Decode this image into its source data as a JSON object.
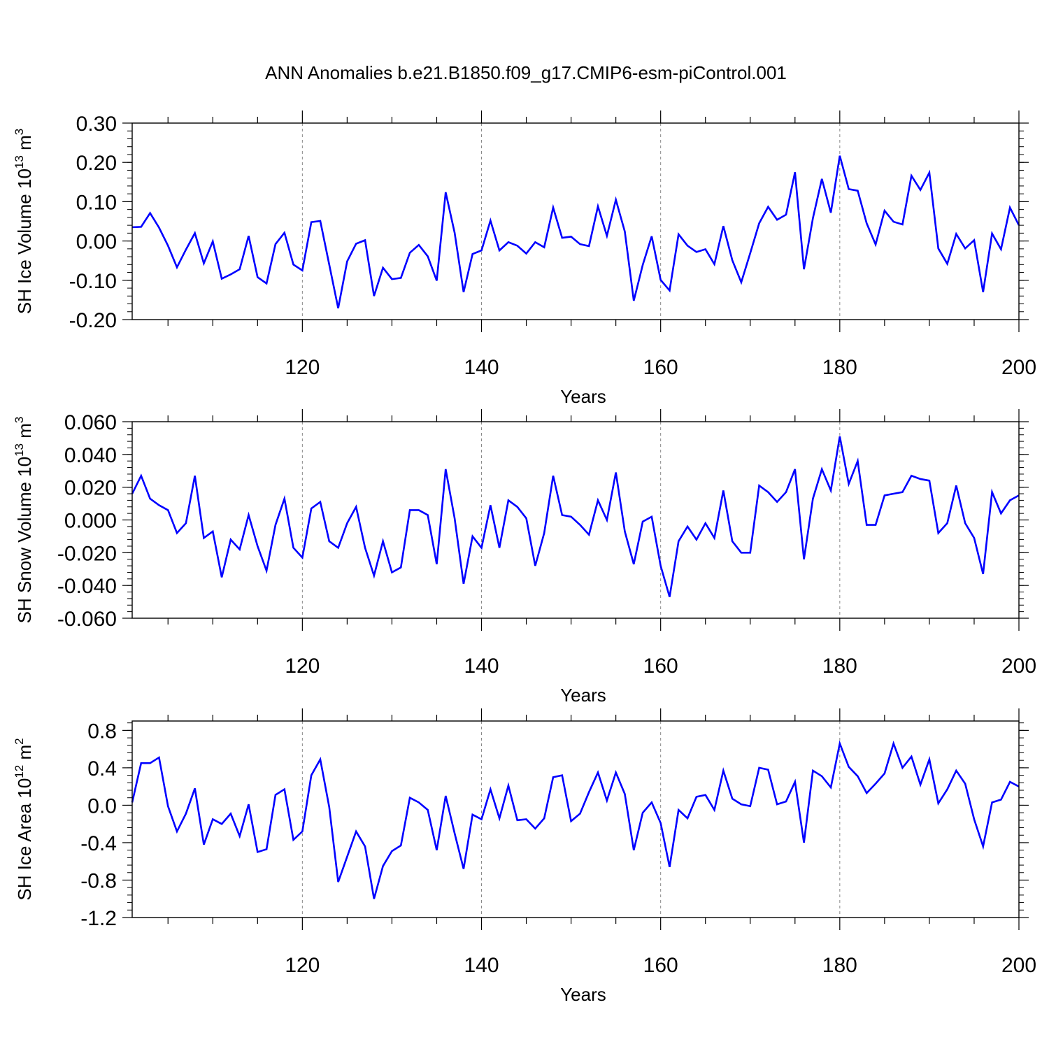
{
  "title": "ANN Anomalies b.e21.B1850.f09_g17.CMIP6-esm-piControl.001",
  "colors": {
    "line": "#0000ff",
    "axis": "#000000",
    "grid": "#888888"
  },
  "chart_data": [
    {
      "type": "line",
      "ylabel": "SH Ice Volume 10",
      "ylabel_exp": "13",
      "ylabel_unit": " m",
      "ylabel_unit_exp": "3",
      "xlabel": "Years",
      "xlim": [
        101,
        200
      ],
      "xticks": [
        120,
        140,
        160,
        180,
        200
      ],
      "x_tick_labels": [
        "120",
        "140",
        "160",
        "180",
        "200"
      ],
      "ylim": [
        -0.2,
        0.3
      ],
      "yticks": [
        0.3,
        0.2,
        0.1,
        0.0,
        -0.1,
        -0.2
      ],
      "y_tick_labels": [
        "0.30",
        "0.20",
        "0.10",
        "0.00",
        "-0.10",
        "-0.20"
      ],
      "grid_x": [
        120,
        140,
        160,
        180
      ],
      "series": [
        {
          "name": "SH Ice Volume",
          "x_start": 101,
          "values": [
            0.035,
            0.036,
            0.071,
            0.034,
            -0.012,
            -0.067,
            -0.022,
            0.02,
            -0.057,
            -0.001,
            -0.096,
            -0.085,
            -0.072,
            0.013,
            -0.092,
            -0.108,
            -0.008,
            0.021,
            -0.06,
            -0.075,
            0.048,
            0.051,
            -0.06,
            -0.171,
            -0.052,
            -0.007,
            0.002,
            -0.14,
            -0.068,
            -0.097,
            -0.094,
            -0.03,
            -0.01,
            -0.039,
            -0.101,
            0.124,
            0.021,
            -0.13,
            -0.033,
            -0.024,
            0.052,
            -0.024,
            -0.003,
            -0.012,
            -0.032,
            -0.003,
            -0.016,
            0.085,
            0.008,
            0.011,
            -0.008,
            -0.013,
            0.088,
            0.013,
            0.105,
            0.024,
            -0.152,
            -0.061,
            0.012,
            -0.099,
            -0.126,
            0.017,
            -0.012,
            -0.028,
            -0.021,
            -0.059,
            0.038,
            -0.049,
            -0.105,
            -0.031,
            0.045,
            0.087,
            0.054,
            0.067,
            0.175,
            -0.072,
            0.058,
            0.158,
            0.072,
            0.217,
            0.132,
            0.128,
            0.045,
            -0.009,
            0.077,
            0.049,
            0.042,
            0.166,
            0.13,
            0.174,
            -0.019,
            -0.058,
            0.018,
            -0.019,
            0.002,
            -0.13,
            0.019,
            -0.021,
            0.085,
            0.04
          ]
        }
      ]
    },
    {
      "type": "line",
      "ylabel": "SH Snow Volume 10",
      "ylabel_exp": "13",
      "ylabel_unit": " m",
      "ylabel_unit_exp": "3",
      "xlabel": "Years",
      "xlim": [
        101,
        200
      ],
      "xticks": [
        120,
        140,
        160,
        180,
        200
      ],
      "x_tick_labels": [
        "120",
        "140",
        "160",
        "180",
        "200"
      ],
      "ylim": [
        -0.06,
        0.06
      ],
      "yticks": [
        0.06,
        0.04,
        0.02,
        0.0,
        -0.02,
        -0.04,
        -0.06
      ],
      "y_tick_labels": [
        "0.060",
        "0.040",
        "0.020",
        "0.000",
        "-0.020",
        "-0.040",
        "-0.060"
      ],
      "grid_x": [
        120,
        140,
        160,
        180
      ],
      "series": [
        {
          "name": "SH Snow Volume",
          "x_start": 101,
          "values": [
            0.016,
            0.027,
            0.013,
            0.009,
            0.006,
            -0.008,
            -0.002,
            0.027,
            -0.011,
            -0.007,
            -0.035,
            -0.012,
            -0.018,
            0.003,
            -0.016,
            -0.031,
            -0.003,
            0.013,
            -0.017,
            -0.023,
            0.007,
            0.011,
            -0.013,
            -0.017,
            -0.002,
            0.008,
            -0.017,
            -0.034,
            -0.013,
            -0.032,
            -0.029,
            0.006,
            0.006,
            0.003,
            -0.027,
            0.031,
            0.001,
            -0.039,
            -0.01,
            -0.017,
            0.009,
            -0.017,
            0.012,
            0.008,
            0.001,
            -0.028,
            -0.008,
            0.027,
            0.003,
            0.002,
            -0.003,
            -0.009,
            0.012,
            0.0,
            0.029,
            -0.007,
            -0.027,
            -0.001,
            0.002,
            -0.028,
            -0.047,
            -0.013,
            -0.004,
            -0.012,
            -0.002,
            -0.011,
            0.018,
            -0.013,
            -0.02,
            -0.02,
            0.021,
            0.017,
            0.011,
            0.017,
            0.031,
            -0.024,
            0.013,
            0.031,
            0.018,
            0.051,
            0.022,
            0.036,
            -0.003,
            -0.003,
            0.015,
            0.016,
            0.017,
            0.027,
            0.025,
            0.024,
            -0.008,
            -0.002,
            0.021,
            -0.002,
            -0.011,
            -0.033,
            0.017,
            0.004,
            0.012,
            0.015
          ]
        }
      ]
    },
    {
      "type": "line",
      "ylabel": "SH Ice Area 10",
      "ylabel_exp": "12",
      "ylabel_unit": " m",
      "ylabel_unit_exp": "2",
      "xlabel": "Years",
      "xlim": [
        101,
        200
      ],
      "xticks": [
        120,
        140,
        160,
        180,
        200
      ],
      "x_tick_labels": [
        "120",
        "140",
        "160",
        "180",
        "200"
      ],
      "ylim": [
        -1.2,
        0.9
      ],
      "yticks": [
        0.8,
        0.4,
        0.0,
        -0.4,
        -0.8,
        -1.2
      ],
      "y_tick_labels": [
        "0.8",
        "0.4",
        "0.0",
        "-0.4",
        "-0.8",
        "-1.2"
      ],
      "grid_x": [
        120,
        140,
        160,
        180
      ],
      "series": [
        {
          "name": "SH Ice Area",
          "x_start": 101,
          "values": [
            0.03,
            0.45,
            0.45,
            0.51,
            -0.01,
            -0.28,
            -0.09,
            0.18,
            -0.42,
            -0.15,
            -0.2,
            -0.09,
            -0.33,
            0.01,
            -0.5,
            -0.47,
            0.11,
            0.17,
            -0.37,
            -0.28,
            0.32,
            0.49,
            -0.02,
            -0.82,
            -0.55,
            -0.28,
            -0.44,
            -1.0,
            -0.65,
            -0.49,
            -0.43,
            0.08,
            0.03,
            -0.05,
            -0.48,
            0.1,
            -0.3,
            -0.68,
            -0.1,
            -0.15,
            0.17,
            -0.14,
            0.21,
            -0.16,
            -0.15,
            -0.25,
            -0.14,
            0.3,
            0.32,
            -0.17,
            -0.09,
            0.14,
            0.35,
            0.05,
            0.35,
            0.12,
            -0.48,
            -0.08,
            0.03,
            -0.19,
            -0.66,
            -0.05,
            -0.14,
            0.09,
            0.11,
            -0.05,
            0.37,
            0.07,
            0.01,
            -0.01,
            0.4,
            0.38,
            0.01,
            0.04,
            0.25,
            -0.4,
            0.37,
            0.31,
            0.19,
            0.66,
            0.41,
            0.31,
            0.13,
            0.23,
            0.34,
            0.66,
            0.4,
            0.52,
            0.22,
            0.49,
            0.02,
            0.17,
            0.37,
            0.23,
            -0.15,
            -0.44,
            0.03,
            0.06,
            0.25,
            0.2
          ]
        }
      ]
    }
  ]
}
